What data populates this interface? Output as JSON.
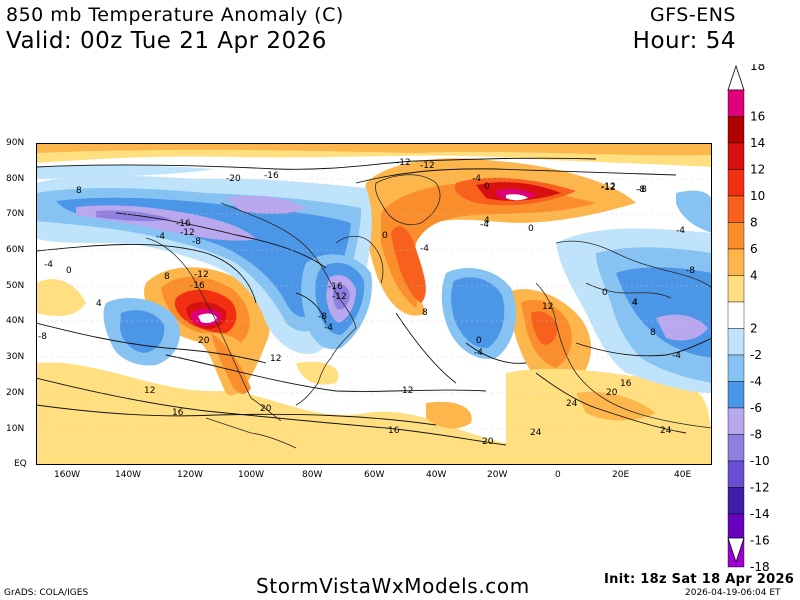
{
  "header": {
    "title": "850 mb Temperature Anomaly (C)",
    "valid": "Valid: 00z Tue 21 Apr 2026",
    "model": "GFS-ENS",
    "hour": "Hour: 54"
  },
  "axes": {
    "lat_labels": [
      "90N",
      "80N",
      "70N",
      "60N",
      "50N",
      "40N",
      "30N",
      "20N",
      "10N",
      "EQ"
    ],
    "lon_labels": [
      "160W",
      "140W",
      "120W",
      "100W",
      "80W",
      "60W",
      "40W",
      "20W",
      "0",
      "20E",
      "40E"
    ]
  },
  "colorbar": {
    "labels": [
      "18",
      "16",
      "14",
      "12",
      "10",
      "8",
      "6",
      "4",
      "2",
      "-2",
      "-4",
      "-6",
      "-8",
      "-10",
      "-12",
      "-14",
      "-16",
      "-18"
    ],
    "colors": [
      "#e0007a",
      "#b00000",
      "#d81010",
      "#f03010",
      "#f8601e",
      "#fb8e2c",
      "#fdb64c",
      "#ffdf80",
      "#ffffff",
      "#bfe3fb",
      "#86c3f2",
      "#4c96e8",
      "#b9a8ee",
      "#8f7fe0",
      "#6a4fd3",
      "#3d1faa",
      "#6a00c0",
      "#a000d8"
    ]
  },
  "contour_labels": [
    {
      "t": "-20"
    },
    {
      "t": "-16"
    },
    {
      "t": "-12"
    },
    {
      "t": "-12"
    },
    {
      "t": "-4"
    },
    {
      "t": "-12"
    },
    {
      "t": "-8"
    },
    {
      "t": "-16"
    },
    {
      "t": "-12"
    },
    {
      "t": "-8"
    },
    {
      "t": "-4"
    },
    {
      "t": "-4"
    },
    {
      "t": "0"
    },
    {
      "t": "8"
    },
    {
      "t": "-12"
    },
    {
      "t": "-16"
    },
    {
      "t": "4"
    },
    {
      "t": "-8"
    },
    {
      "t": "-16"
    },
    {
      "t": "-12"
    },
    {
      "t": "-8"
    },
    {
      "t": "-4"
    },
    {
      "t": "-4"
    },
    {
      "t": "0"
    },
    {
      "t": "0"
    },
    {
      "t": "-4"
    },
    {
      "t": "0"
    },
    {
      "t": "4"
    },
    {
      "t": "0"
    },
    {
      "t": "-4"
    },
    {
      "t": "8"
    },
    {
      "t": "12"
    },
    {
      "t": "20"
    },
    {
      "t": "12"
    },
    {
      "t": "12"
    },
    {
      "t": "16"
    },
    {
      "t": "20"
    },
    {
      "t": "12"
    },
    {
      "t": "16"
    },
    {
      "t": "20"
    },
    {
      "t": "24"
    },
    {
      "t": "24"
    },
    {
      "t": "20"
    },
    {
      "t": "24"
    },
    {
      "t": "0"
    },
    {
      "t": "4"
    },
    {
      "t": "8"
    },
    {
      "t": "16"
    },
    {
      "t": "-12"
    },
    {
      "t": "-8"
    },
    {
      "t": "8"
    },
    {
      "t": "-4"
    },
    {
      "t": "-8"
    },
    {
      "t": "4"
    },
    {
      "t": "-4"
    }
  ],
  "footer": {
    "grads": "GrADS: COLA/IGES",
    "site": "StormVistaWxModels.com",
    "init": "Init: 18z Sat 18 Apr 2026",
    "generated": "2026-04-19-06:04 ET"
  }
}
